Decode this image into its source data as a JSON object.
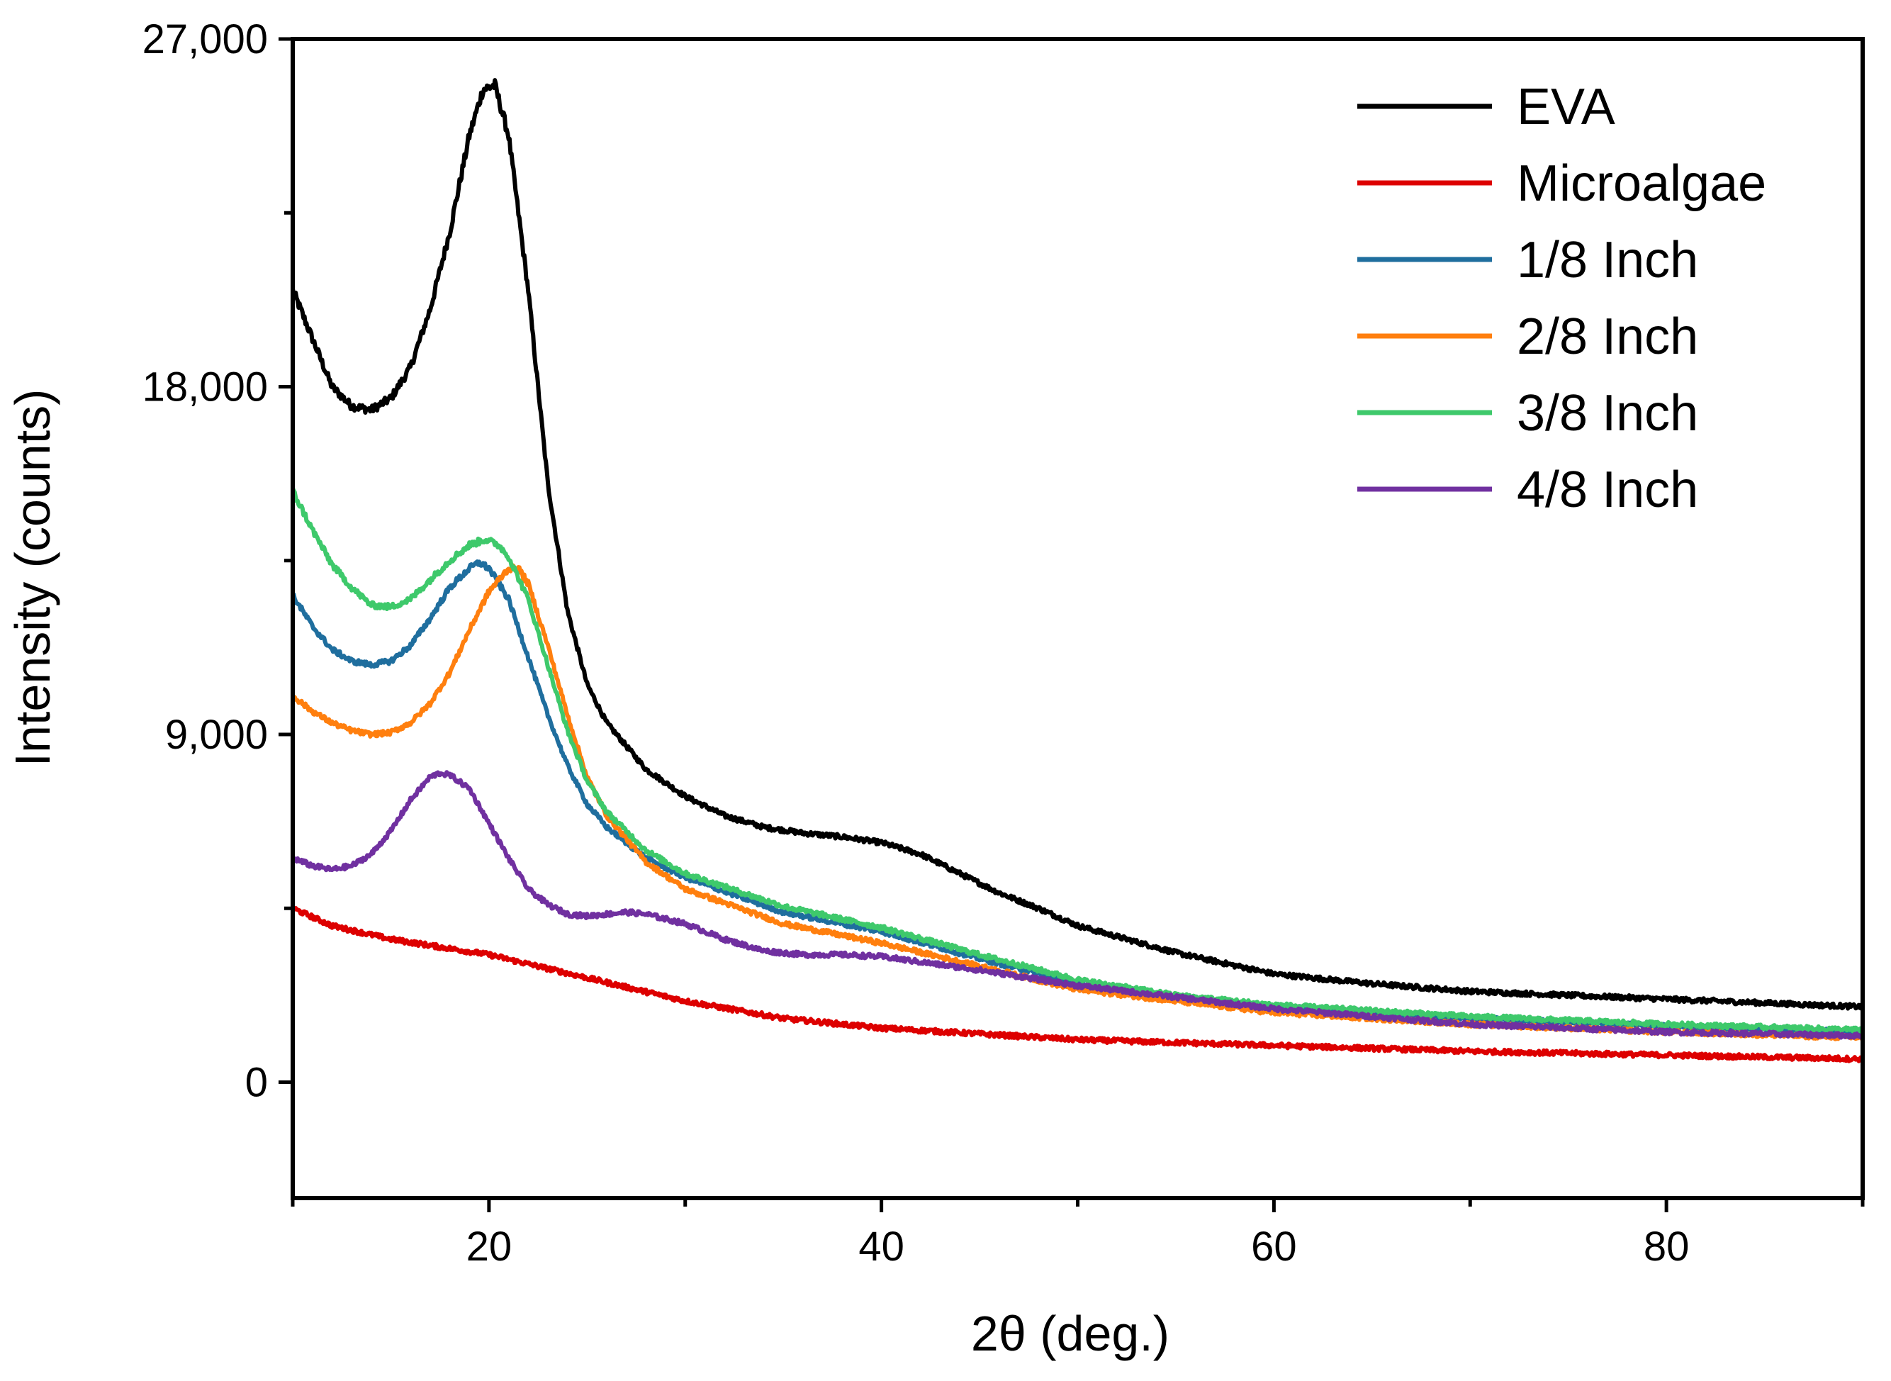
{
  "chart_data": {
    "type": "line",
    "title": "",
    "xlabel": "2θ (deg.)",
    "ylabel": "Intensity (counts)",
    "xlim": [
      10,
      90
    ],
    "ylim": [
      -3000,
      27000
    ],
    "x_ticks": [
      20,
      40,
      60,
      80
    ],
    "x_tick_labels": [
      "20",
      "40",
      "60",
      "80"
    ],
    "y_ticks": [
      0,
      9000,
      18000,
      27000
    ],
    "y_tick_labels": [
      "0",
      "9,000",
      "18,000",
      "27,000"
    ],
    "legend_position": "top-right",
    "series": [
      {
        "name": "EVA",
        "color": "#000000",
        "x": [
          10,
          12,
          13,
          14,
          15,
          16,
          17,
          18,
          19,
          19.7,
          20.3,
          21,
          22,
          23,
          24,
          25,
          26,
          28,
          30,
          32,
          34,
          36,
          38,
          40,
          42,
          44,
          46,
          48,
          50,
          55,
          60,
          65,
          70,
          75,
          80,
          85,
          90
        ],
        "y": [
          20500,
          18000,
          17500,
          17400,
          17700,
          18500,
          20000,
          22000,
          24500,
          25700,
          25800,
          24500,
          20500,
          15500,
          12200,
          10300,
          9300,
          8100,
          7400,
          6900,
          6600,
          6450,
          6350,
          6200,
          5900,
          5400,
          4900,
          4500,
          4050,
          3350,
          2800,
          2550,
          2350,
          2250,
          2150,
          2050,
          1950
        ]
      },
      {
        "name": "Microalgae",
        "color": "#dd0000",
        "x": [
          10,
          12,
          15,
          20,
          25,
          30,
          35,
          40,
          45,
          50,
          60,
          70,
          80,
          90
        ],
        "y": [
          4500,
          4050,
          3700,
          3300,
          2700,
          2100,
          1650,
          1400,
          1250,
          1100,
          950,
          800,
          700,
          600
        ]
      },
      {
        "name": "1/8 Inch",
        "color": "#1f6e9e",
        "x": [
          10,
          11,
          12,
          13,
          14,
          15,
          16,
          17,
          18,
          19,
          19.5,
          20,
          21,
          22,
          23,
          24,
          25,
          26,
          28,
          30,
          35,
          40,
          45,
          50,
          55,
          60,
          70,
          80,
          90
        ],
        "y": [
          12600,
          11800,
          11200,
          10900,
          10800,
          10900,
          11300,
          12000,
          12800,
          13300,
          13450,
          13300,
          12500,
          11000,
          9500,
          8200,
          7200,
          6600,
          5800,
          5300,
          4400,
          3900,
          3200,
          2550,
          2200,
          1950,
          1650,
          1450,
          1300
        ]
      },
      {
        "name": "2/8 Inch",
        "color": "#ff7f0e",
        "x": [
          10,
          11,
          12,
          13,
          14,
          15,
          16,
          17,
          18,
          19,
          20,
          21,
          21.5,
          22,
          23,
          24,
          25,
          26,
          28,
          30,
          35,
          40,
          45,
          50,
          55,
          60,
          70,
          80,
          90
        ],
        "y": [
          10000,
          9600,
          9300,
          9100,
          9000,
          9050,
          9300,
          9800,
          10600,
          11700,
          12700,
          13300,
          13300,
          12900,
          11300,
          9500,
          7900,
          6900,
          5700,
          5000,
          4100,
          3600,
          3000,
          2400,
          2100,
          1800,
          1500,
          1300,
          1150
        ]
      },
      {
        "name": "3/8 Inch",
        "color": "#3ec96b",
        "x": [
          10,
          11,
          12,
          13,
          14,
          15,
          16,
          17,
          18,
          19,
          19.8,
          20.5,
          21,
          22,
          23,
          24,
          25,
          26,
          28,
          30,
          35,
          40,
          45,
          50,
          55,
          60,
          70,
          80,
          90
        ],
        "y": [
          15300,
          14300,
          13400,
          12800,
          12350,
          12300,
          12500,
          13000,
          13500,
          13900,
          14050,
          13900,
          13600,
          12500,
          10800,
          9100,
          7800,
          7000,
          6000,
          5400,
          4550,
          4000,
          3300,
          2650,
          2250,
          2000,
          1700,
          1500,
          1350
        ]
      },
      {
        "name": "4/8 Inch",
        "color": "#7030a0",
        "x": [
          10,
          11,
          12,
          13,
          14,
          15,
          16,
          17,
          17.5,
          18,
          19,
          20,
          21,
          22,
          23,
          24,
          25,
          26,
          27,
          28,
          30,
          32,
          34,
          36,
          38,
          40,
          45,
          50,
          55,
          60,
          70,
          80,
          90
        ],
        "y": [
          5800,
          5600,
          5500,
          5600,
          5900,
          6500,
          7300,
          7900,
          8000,
          7950,
          7600,
          6700,
          5800,
          5000,
          4600,
          4350,
          4300,
          4350,
          4400,
          4350,
          4100,
          3700,
          3400,
          3300,
          3300,
          3250,
          2900,
          2500,
          2200,
          1900,
          1500,
          1300,
          1200
        ]
      }
    ]
  }
}
